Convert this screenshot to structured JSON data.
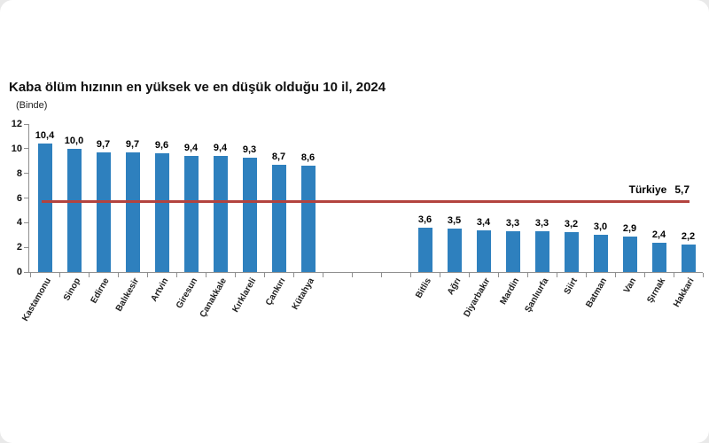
{
  "chart_data": {
    "type": "bar",
    "title": "Kaba ölüm hızının en yüksek ve en düşük olduğu 10 il, 2024",
    "unit_label": "(Binde)",
    "ylim": [
      0,
      12
    ],
    "yticks": [
      0,
      2,
      4,
      6,
      8,
      10,
      12
    ],
    "grid": false,
    "legend": "none",
    "bar_color": "#2E80BE",
    "groups": [
      {
        "categories": [
          "Kastamonu",
          "Sinop",
          "Edirne",
          "Balıkesir",
          "Artvin",
          "Giresun",
          "Çanakkale",
          "Kırklareli",
          "Çankırı",
          "Kütahya"
        ],
        "values": [
          10.4,
          10.0,
          9.7,
          9.7,
          9.6,
          9.4,
          9.4,
          9.3,
          8.7,
          8.6
        ],
        "value_labels": [
          "10,4",
          "10,0",
          "9,7",
          "9,7",
          "9,6",
          "9,4",
          "9,4",
          "9,3",
          "8,7",
          "8,6"
        ]
      },
      {
        "categories": [
          "Bitlis",
          "Ağrı",
          "Diyarbakır",
          "Mardin",
          "Şanlıurfa",
          "Siirt",
          "Batman",
          "Van",
          "Şırnak",
          "Hakkari"
        ],
        "values": [
          3.6,
          3.5,
          3.4,
          3.3,
          3.3,
          3.2,
          3.0,
          2.9,
          2.4,
          2.2
        ],
        "value_labels": [
          "3,6",
          "3,5",
          "3,4",
          "3,3",
          "3,3",
          "3,2",
          "3,0",
          "2,9",
          "2,4",
          "2,2"
        ]
      }
    ],
    "reference_line": {
      "label": "Türkiye",
      "value": 5.7,
      "value_label": "5,7",
      "color": "#B3433E"
    }
  }
}
